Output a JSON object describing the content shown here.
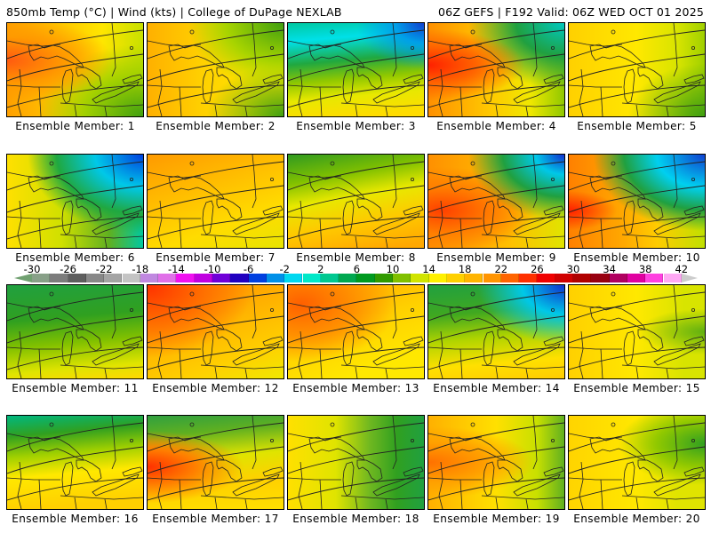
{
  "header": {
    "left": "850mb Temp (°C) | Wind (kts) | College of DuPage NEXLAB",
    "right": "06Z GEFS | F192 Valid: 06Z WED OCT 01 2025"
  },
  "panels": [
    {
      "label": "Ensemble Member: 1"
    },
    {
      "label": "Ensemble Member: 2"
    },
    {
      "label": "Ensemble Member: 3"
    },
    {
      "label": "Ensemble Member: 4"
    },
    {
      "label": "Ensemble Member: 5"
    },
    {
      "label": "Ensemble Member: 6"
    },
    {
      "label": "Ensemble Member: 7"
    },
    {
      "label": "Ensemble Member: 8"
    },
    {
      "label": "Ensemble Member: 9"
    },
    {
      "label": "Ensemble Member: 10"
    },
    {
      "label": "Ensemble Member: 11"
    },
    {
      "label": "Ensemble Member: 12"
    },
    {
      "label": "Ensemble Member: 13"
    },
    {
      "label": "Ensemble Member: 14"
    },
    {
      "label": "Ensemble Member: 15"
    },
    {
      "label": "Ensemble Member: 16"
    },
    {
      "label": "Ensemble Member: 17"
    },
    {
      "label": "Ensemble Member: 18"
    },
    {
      "label": "Ensemble Member: 19"
    },
    {
      "label": "Ensemble Member: 20"
    }
  ],
  "colorbar": {
    "min": -30,
    "max": 42,
    "step": 2,
    "ticks": [
      "-30",
      "-26",
      "-22",
      "-18",
      "-14",
      "-10",
      "-6",
      "-2",
      "2",
      "6",
      "10",
      "14",
      "18",
      "22",
      "26",
      "30",
      "34",
      "38",
      "42"
    ],
    "tick_values": [
      -30,
      -26,
      -22,
      -18,
      -14,
      -10,
      -6,
      -2,
      2,
      6,
      10,
      14,
      18,
      22,
      26,
      30,
      34,
      38,
      42
    ],
    "low_color": "#70a070",
    "high_color": "#ffffff",
    "colors": [
      "#88a088",
      "#7c7c7c",
      "#5e5e5e",
      "#888888",
      "#a4a4a4",
      "#c4c4c4",
      "#c088e0",
      "#e070e8",
      "#f010f0",
      "#c000e0",
      "#7000d8",
      "#2000c0",
      "#0040e0",
      "#0090e8",
      "#00d8f0",
      "#00e8c8",
      "#00c890",
      "#00a850",
      "#009a20",
      "#309a00",
      "#80c000",
      "#d0e400",
      "#fff000",
      "#ffd000",
      "#ffb400",
      "#ff9400",
      "#ff6400",
      "#ff3000",
      "#f00000",
      "#d00000",
      "#b00000",
      "#980010",
      "#b00060",
      "#e000a0",
      "#ff40e0",
      "#ffa8f4"
    ]
  }
}
